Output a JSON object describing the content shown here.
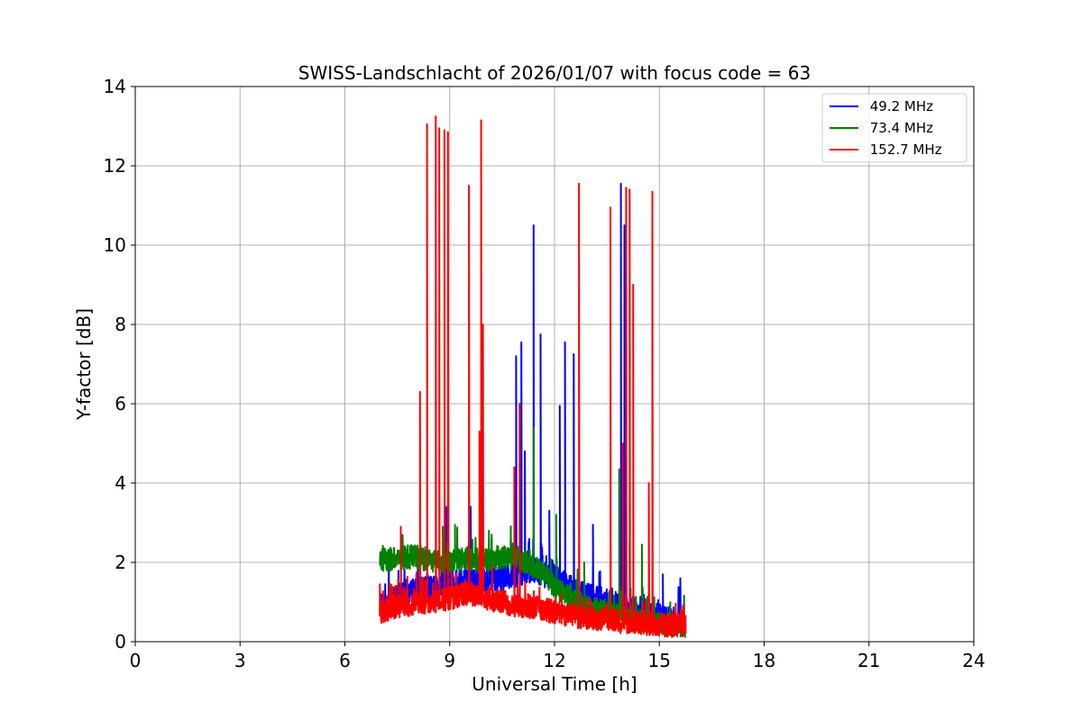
{
  "chart_data": {
    "type": "line",
    "title": "SWISS-Landschlacht of 2026/01/07 with focus code = 63",
    "xlabel": "Universal Time [h]",
    "ylabel": "Y-factor [dB]",
    "xlim": [
      0,
      24
    ],
    "ylim": [
      0,
      14
    ],
    "xticks": [
      0,
      3,
      6,
      9,
      12,
      15,
      18,
      21,
      24
    ],
    "yticks": [
      0,
      2,
      4,
      6,
      8,
      10,
      12,
      14
    ],
    "grid": true,
    "legend_position": "top-right",
    "series": [
      {
        "name": " 49.2 MHz",
        "color": "#0000ff",
        "base": [
          [
            7.0,
            0.9
          ],
          [
            7.5,
            1.1
          ],
          [
            8.0,
            1.25
          ],
          [
            8.5,
            1.35
          ],
          [
            9.0,
            1.45
          ],
          [
            9.5,
            1.5
          ],
          [
            10.0,
            1.5
          ],
          [
            10.5,
            1.6
          ],
          [
            11.0,
            1.75
          ],
          [
            11.5,
            1.8
          ],
          [
            12.0,
            1.6
          ],
          [
            12.5,
            1.3
          ],
          [
            13.0,
            1.1
          ],
          [
            13.5,
            1.0
          ],
          [
            14.0,
            0.85
          ],
          [
            14.5,
            0.7
          ],
          [
            15.0,
            0.6
          ],
          [
            15.5,
            0.5
          ],
          [
            15.75,
            0.45
          ]
        ],
        "noise": 0.35,
        "spikes": [
          [
            8.9,
            3.4
          ],
          [
            9.6,
            3.4
          ],
          [
            10.2,
            2.6
          ],
          [
            10.9,
            7.2
          ],
          [
            11.05,
            7.55
          ],
          [
            11.15,
            4.8
          ],
          [
            11.4,
            10.5
          ],
          [
            11.6,
            7.75
          ],
          [
            11.85,
            3.3
          ],
          [
            12.15,
            5.95
          ],
          [
            12.3,
            7.55
          ],
          [
            12.55,
            7.25
          ],
          [
            13.1,
            2.95
          ],
          [
            13.9,
            11.55
          ],
          [
            14.0,
            10.5
          ],
          [
            14.5,
            1.6
          ],
          [
            15.1,
            1.7
          ],
          [
            15.6,
            1.6
          ]
        ]
      },
      {
        "name": " 73.4 MHz",
        "color": "#008000",
        "base": [
          [
            7.0,
            2.05
          ],
          [
            7.5,
            2.1
          ],
          [
            8.0,
            2.15
          ],
          [
            8.5,
            2.05
          ],
          [
            9.0,
            2.0
          ],
          [
            9.5,
            2.1
          ],
          [
            10.0,
            2.05
          ],
          [
            10.5,
            2.15
          ],
          [
            11.0,
            2.1
          ],
          [
            11.5,
            1.85
          ],
          [
            12.0,
            1.4
          ],
          [
            12.5,
            1.05
          ],
          [
            13.0,
            0.85
          ],
          [
            13.5,
            0.75
          ],
          [
            14.0,
            0.65
          ],
          [
            14.5,
            0.5
          ],
          [
            15.0,
            0.45
          ],
          [
            15.5,
            0.4
          ],
          [
            15.75,
            0.4
          ]
        ],
        "noise": 0.3,
        "spikes": [
          [
            8.8,
            2.9
          ],
          [
            9.15,
            2.95
          ],
          [
            9.55,
            2.9
          ],
          [
            10.2,
            2.7
          ],
          [
            10.75,
            2.6
          ],
          [
            11.4,
            5.4
          ],
          [
            12.05,
            3.2
          ],
          [
            12.85,
            2.0
          ],
          [
            13.85,
            4.35
          ],
          [
            14.15,
            2.5
          ],
          [
            14.5,
            2.45
          ],
          [
            15.3,
            0.9
          ]
        ]
      },
      {
        "name": " 152.7 MHz",
        "color": "#ff0000",
        "base": [
          [
            7.0,
            0.75
          ],
          [
            7.5,
            0.9
          ],
          [
            8.0,
            0.95
          ],
          [
            8.5,
            1.0
          ],
          [
            9.0,
            1.1
          ],
          [
            9.5,
            1.2
          ],
          [
            10.0,
            1.1
          ],
          [
            10.5,
            1.0
          ],
          [
            11.0,
            0.9
          ],
          [
            11.5,
            0.85
          ],
          [
            12.0,
            0.75
          ],
          [
            12.5,
            0.65
          ],
          [
            13.0,
            0.6
          ],
          [
            13.5,
            0.55
          ],
          [
            14.0,
            0.5
          ],
          [
            14.5,
            0.45
          ],
          [
            15.0,
            0.4
          ],
          [
            15.5,
            0.4
          ],
          [
            15.75,
            0.4
          ]
        ],
        "noise": 0.3,
        "spikes": [
          [
            7.0,
            1.45
          ],
          [
            7.6,
            2.9
          ],
          [
            8.15,
            6.3
          ],
          [
            8.35,
            13.05
          ],
          [
            8.6,
            13.25
          ],
          [
            8.7,
            12.95
          ],
          [
            8.85,
            12.9
          ],
          [
            8.95,
            12.85
          ],
          [
            9.55,
            11.5
          ],
          [
            9.85,
            5.3
          ],
          [
            9.9,
            13.15
          ],
          [
            9.95,
            8.0
          ],
          [
            10.85,
            4.4
          ],
          [
            11.0,
            6.0
          ],
          [
            12.7,
            11.55
          ],
          [
            13.6,
            10.95
          ],
          [
            13.95,
            5.0
          ],
          [
            14.05,
            11.45
          ],
          [
            14.15,
            11.4
          ],
          [
            14.25,
            9.0
          ],
          [
            14.7,
            4.0
          ],
          [
            14.8,
            11.35
          ],
          [
            15.7,
            0.95
          ]
        ]
      }
    ]
  }
}
